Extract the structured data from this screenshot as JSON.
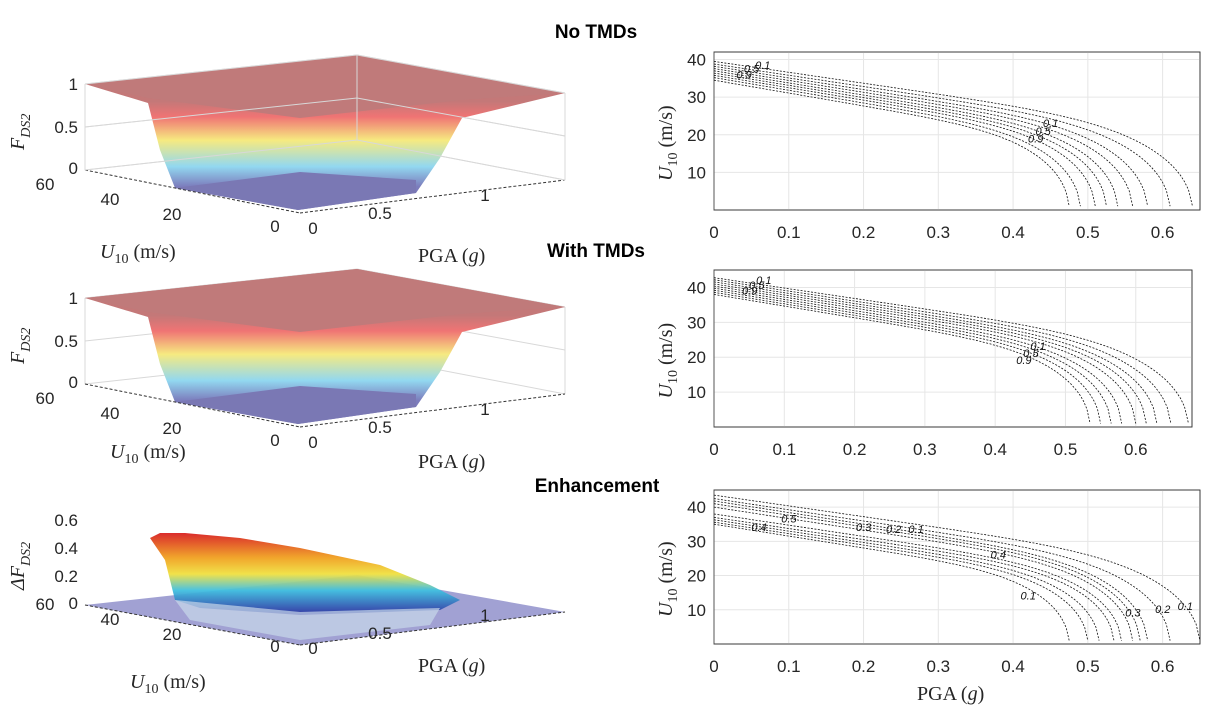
{
  "titles": [
    "No TMDs",
    "With TMDs",
    "Enhancement"
  ],
  "chart_data": [
    {
      "type": "surface",
      "panel": "No TMDs",
      "zlabel": "F_DS2",
      "xlabel": "PGA (g)",
      "ylabel": "U10 (m/s)",
      "zticks": [
        "0",
        "0.5",
        "1"
      ],
      "uticks": [
        "60",
        "40",
        "20",
        "0"
      ],
      "pgaticks": [
        "0",
        "0.5",
        "1"
      ],
      "zlim": [
        0,
        1
      ],
      "colormap": "rainbow (purple-cyan-yellow-red)"
    },
    {
      "type": "contour",
      "panel": "No TMDs",
      "xlabel": "",
      "ylabel": "U10 (m/s)",
      "xlim": [
        0,
        0.65
      ],
      "ylim": [
        0,
        42
      ],
      "xticks": [
        "0",
        "0.1",
        "0.2",
        "0.3",
        "0.4",
        "0.5",
        "0.6"
      ],
      "yticks": [
        "10",
        "20",
        "30",
        "40"
      ],
      "grid": true,
      "levels": [
        0.9,
        0.8,
        0.7,
        0.6,
        0.5,
        0.4,
        0.3,
        0.2,
        0.1
      ],
      "u_at_zero_pga": [
        34.5,
        35.2,
        35.8,
        36.4,
        37,
        37.6,
        38.2,
        38.8,
        39.5
      ],
      "pga_at_zero_wind": [
        0.475,
        0.49,
        0.51,
        0.525,
        0.54,
        0.56,
        0.58,
        0.61,
        0.64
      ]
    },
    {
      "type": "surface",
      "panel": "With TMDs",
      "zlabel": "F_DS2",
      "xlabel": "PGA (g)",
      "ylabel": "U10 (m/s)",
      "zticks": [
        "0",
        "0.5",
        "1"
      ],
      "uticks": [
        "60",
        "40",
        "20",
        "0"
      ],
      "pgaticks": [
        "0",
        "0.5",
        "1"
      ],
      "zlim": [
        0,
        1
      ]
    },
    {
      "type": "contour",
      "panel": "With TMDs",
      "xlabel": "",
      "ylabel": "U10 (m/s)",
      "xlim": [
        0,
        0.68
      ],
      "ylim": [
        0,
        45
      ],
      "xticks": [
        "0",
        "0.1",
        "0.2",
        "0.3",
        "0.4",
        "0.5",
        "0.6"
      ],
      "yticks": [
        "10",
        "20",
        "30",
        "40"
      ],
      "grid": true,
      "levels": [
        0.9,
        0.8,
        0.7,
        0.6,
        0.5,
        0.4,
        0.3,
        0.2,
        0.1
      ],
      "u_at_zero_pga": [
        38,
        38.6,
        39.2,
        39.8,
        40.4,
        41,
        41.6,
        42.2,
        42.8
      ],
      "pga_at_zero_wind": [
        0.535,
        0.55,
        0.565,
        0.58,
        0.6,
        0.615,
        0.63,
        0.65,
        0.675
      ]
    },
    {
      "type": "surface",
      "panel": "Enhancement",
      "zlabel": "ΔF_DS2",
      "xlabel": "PGA (g)",
      "ylabel": "U10 (m/s)",
      "zticks": [
        "0",
        "0.2",
        "0.4",
        "0.6"
      ],
      "uticks": [
        "60",
        "40",
        "20",
        "0"
      ],
      "pgaticks": [
        "0",
        "0.5",
        "1"
      ],
      "zlim": [
        0,
        0.6
      ]
    },
    {
      "type": "contour",
      "panel": "Enhancement",
      "xlabel": "PGA (g)",
      "ylabel": "U10 (m/s)",
      "xlim": [
        0,
        0.65
      ],
      "ylim": [
        0,
        45
      ],
      "xticks": [
        "0",
        "0.1",
        "0.2",
        "0.3",
        "0.4",
        "0.5",
        "0.6"
      ],
      "yticks": [
        "10",
        "20",
        "30",
        "40"
      ],
      "grid": true,
      "levels": [
        0.1,
        0.2,
        0.3,
        0.4,
        0.5,
        0.5,
        0.4,
        0.3,
        0.2,
        0.1
      ],
      "u_at_zero_pga": [
        43.5,
        42.5,
        41.8,
        41,
        40,
        38,
        37,
        36.3,
        35.6,
        35
      ],
      "pga_at_zero_wind": [
        0.65,
        0.61,
        0.58,
        0.57,
        0.56,
        0.545,
        0.535,
        0.515,
        0.5,
        0.475
      ]
    }
  ],
  "contour_labels": [
    [
      {
        "t": "0.9",
        "x": 0.03,
        "y": 35
      },
      {
        "t": "0.5",
        "x": 0.04,
        "y": 36.5
      },
      {
        "t": "0.1",
        "x": 0.055,
        "y": 37.5
      },
      {
        "t": "0.9",
        "x": 0.42,
        "y": 18
      },
      {
        "t": "0.5",
        "x": 0.43,
        "y": 20
      },
      {
        "t": "0.1",
        "x": 0.44,
        "y": 22
      }
    ],
    [
      {
        "t": "0.9",
        "x": 0.04,
        "y": 38
      },
      {
        "t": "0.5",
        "x": 0.05,
        "y": 39.5
      },
      {
        "t": "0.1",
        "x": 0.06,
        "y": 41
      },
      {
        "t": "0.9",
        "x": 0.43,
        "y": 18
      },
      {
        "t": "0.5",
        "x": 0.44,
        "y": 20
      },
      {
        "t": "0.1",
        "x": 0.45,
        "y": 22
      }
    ],
    [
      {
        "t": "0.5",
        "x": 0.09,
        "y": 35.5
      },
      {
        "t": "0.3",
        "x": 0.19,
        "y": 33
      },
      {
        "t": "0.2",
        "x": 0.23,
        "y": 32.5
      },
      {
        "t": "0.1",
        "x": 0.26,
        "y": 32.5
      },
      {
        "t": "0.4",
        "x": 0.37,
        "y": 25
      },
      {
        "t": "0.4",
        "x": 0.05,
        "y": 33
      },
      {
        "t": "0.1",
        "x": 0.41,
        "y": 13
      },
      {
        "t": "0.3",
        "x": 0.55,
        "y": 8
      },
      {
        "t": "0.2",
        "x": 0.59,
        "y": 9
      },
      {
        "t": "0.1",
        "x": 0.62,
        "y": 10
      }
    ]
  ],
  "axis_labels": {
    "F": "F",
    "sub": "DS2",
    "dF": "ΔF",
    "U": "U",
    "U_sub": "10",
    "ms": " (m/s)",
    "pga": "PGA (",
    "g": "g",
    ")": ")"
  }
}
